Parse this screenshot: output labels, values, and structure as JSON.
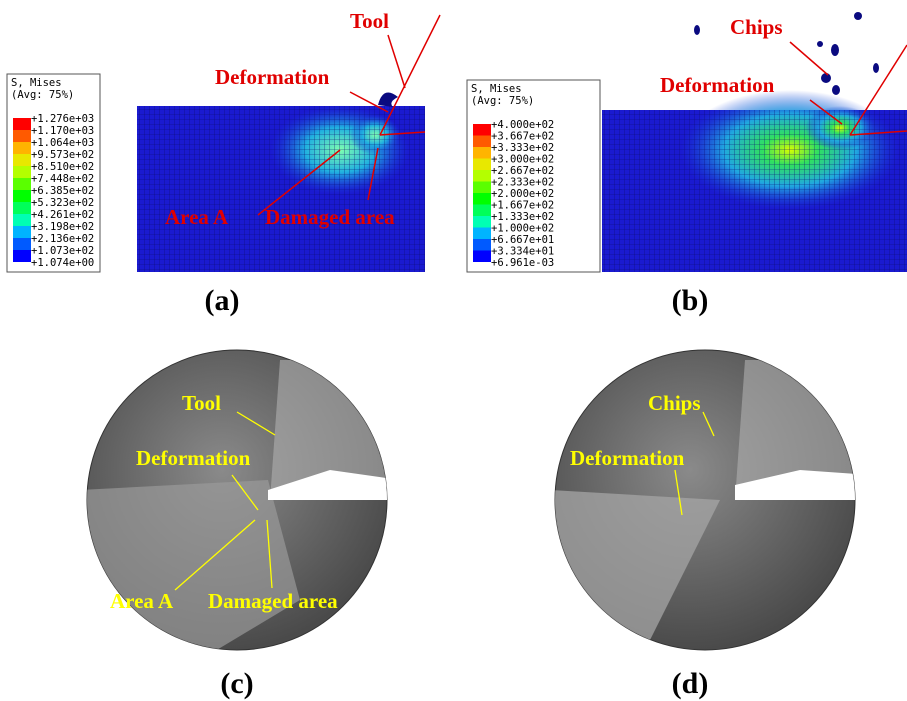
{
  "panels": [
    {
      "label": "(a)",
      "legend": {
        "title": "S, Mises",
        "subtitle": "(Avg: 75%)",
        "entries": [
          "+1.276e+03",
          "+1.170e+03",
          "+1.064e+03",
          "+9.573e+02",
          "+8.510e+02",
          "+7.448e+02",
          "+6.385e+02",
          "+5.323e+02",
          "+4.261e+02",
          "+3.198e+02",
          "+2.136e+02",
          "+1.073e+02",
          "+1.074e+00"
        ]
      },
      "annotations": [
        "Tool",
        "Deformation",
        "Area A",
        "Damaged area"
      ]
    },
    {
      "label": "(b)",
      "legend": {
        "title": "S, Mises",
        "subtitle": "(Avg: 75%)",
        "entries": [
          "+4.000e+02",
          "+3.667e+02",
          "+3.333e+02",
          "+3.000e+02",
          "+2.667e+02",
          "+2.333e+02",
          "+2.000e+02",
          "+1.667e+02",
          "+1.333e+02",
          "+1.000e+02",
          "+6.667e+01",
          "+3.334e+01",
          "+6.961e-03"
        ]
      },
      "annotations": [
        "Chips",
        "Deformation"
      ]
    },
    {
      "label": "(c)",
      "annotations": [
        "Tool",
        "Deformation",
        "Area A",
        "Damaged area"
      ]
    },
    {
      "label": "(d)",
      "annotations": [
        "Chips",
        "Deformation"
      ]
    }
  ]
}
